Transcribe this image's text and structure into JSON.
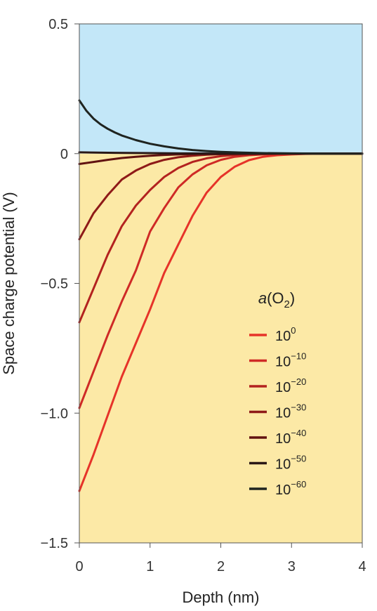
{
  "chart_data": {
    "type": "line",
    "xlabel": "Depth (nm)",
    "ylabel": "Space charge potential (V)",
    "xlim": [
      0,
      4
    ],
    "ylim": [
      -1.5,
      0.5
    ],
    "x_ticks": [
      0,
      1,
      2,
      3,
      4
    ],
    "x_tick_labels": [
      "0",
      "1",
      "2",
      "3",
      "4"
    ],
    "y_ticks": [
      0.5,
      0,
      -0.5,
      -1.0,
      -1.5
    ],
    "y_tick_labels": [
      "0.5",
      "0",
      "−0.5",
      "−1.0",
      "−1.5"
    ],
    "regions": [
      {
        "y_from": 0,
        "y_to": 0.5,
        "color": "#c3e7f8"
      },
      {
        "y_from": -1.5,
        "y_to": 0,
        "color": "#fce9a6"
      }
    ],
    "legend": {
      "title_base": "a",
      "title_open": "(O",
      "title_sub": "2",
      "title_close": ")",
      "placement": "lower-right"
    },
    "series": [
      {
        "name_base": "10",
        "name_exp": "0",
        "color": "#e63329",
        "x": [
          0,
          0.2,
          0.4,
          0.6,
          0.8,
          1.0,
          1.2,
          1.4,
          1.6,
          1.8,
          2.0,
          2.2,
          2.4,
          2.6,
          2.8,
          3.0,
          3.2,
          3.5,
          4.0
        ],
        "y": [
          -1.3,
          -1.16,
          -1.01,
          -0.86,
          -0.73,
          -0.6,
          -0.46,
          -0.35,
          -0.24,
          -0.15,
          -0.09,
          -0.05,
          -0.025,
          -0.012,
          -0.006,
          -0.003,
          -0.001,
          0,
          0
        ]
      },
      {
        "name_base": "10",
        "name_exp": "−10",
        "color": "#cf2a26",
        "x": [
          0,
          0.2,
          0.4,
          0.6,
          0.8,
          1.0,
          1.2,
          1.4,
          1.6,
          1.8,
          2.0,
          2.2,
          2.4,
          2.6,
          2.8,
          3.0,
          3.5,
          4.0
        ],
        "y": [
          -0.98,
          -0.84,
          -0.7,
          -0.57,
          -0.45,
          -0.3,
          -0.21,
          -0.13,
          -0.08,
          -0.045,
          -0.024,
          -0.012,
          -0.006,
          -0.003,
          -0.001,
          0,
          0,
          0
        ]
      },
      {
        "name_base": "10",
        "name_exp": "−20",
        "color": "#b3221f",
        "x": [
          0,
          0.2,
          0.4,
          0.6,
          0.8,
          1.0,
          1.2,
          1.4,
          1.6,
          1.8,
          2.0,
          2.2,
          2.4,
          2.6,
          3.0,
          3.5,
          4.0
        ],
        "y": [
          -0.65,
          -0.52,
          -0.39,
          -0.28,
          -0.2,
          -0.14,
          -0.09,
          -0.055,
          -0.032,
          -0.018,
          -0.01,
          -0.005,
          -0.003,
          -0.001,
          0,
          0,
          0
        ]
      },
      {
        "name_base": "10",
        "name_exp": "−30",
        "color": "#8e1a18",
        "x": [
          0,
          0.2,
          0.4,
          0.6,
          0.8,
          1.0,
          1.2,
          1.4,
          1.6,
          1.8,
          2.0,
          2.4,
          3.0,
          3.5,
          4.0
        ],
        "y": [
          -0.33,
          -0.23,
          -0.16,
          -0.1,
          -0.065,
          -0.04,
          -0.024,
          -0.014,
          -0.008,
          -0.004,
          -0.002,
          -0.001,
          0,
          0,
          0
        ]
      },
      {
        "name_base": "10",
        "name_exp": "−40",
        "color": "#611210",
        "x": [
          0,
          0.2,
          0.4,
          0.6,
          0.8,
          1.0,
          1.2,
          1.4,
          1.6,
          2.0,
          2.5,
          3.0,
          4.0
        ],
        "y": [
          -0.04,
          -0.032,
          -0.024,
          -0.017,
          -0.012,
          -0.008,
          -0.005,
          -0.003,
          -0.002,
          -0.001,
          0,
          0,
          0
        ]
      },
      {
        "name_base": "10",
        "name_exp": "−50",
        "color": "#2a1816",
        "x": [
          0,
          0.5,
          1.0,
          1.5,
          2.0,
          3.0,
          4.0
        ],
        "y": [
          0.005,
          0.003,
          0.002,
          0.001,
          0,
          0,
          0
        ]
      },
      {
        "name_base": "10",
        "name_exp": "−60",
        "color": "#1f2420",
        "x": [
          0,
          0.1,
          0.2,
          0.3,
          0.4,
          0.5,
          0.6,
          0.8,
          1.0,
          1.2,
          1.4,
          1.6,
          1.8,
          2.0,
          2.3,
          2.6,
          3.0,
          3.5,
          4.0
        ],
        "y": [
          0.205,
          0.165,
          0.135,
          0.113,
          0.096,
          0.082,
          0.07,
          0.052,
          0.038,
          0.028,
          0.02,
          0.014,
          0.01,
          0.007,
          0.004,
          0.002,
          0.001,
          0,
          0
        ]
      }
    ]
  }
}
